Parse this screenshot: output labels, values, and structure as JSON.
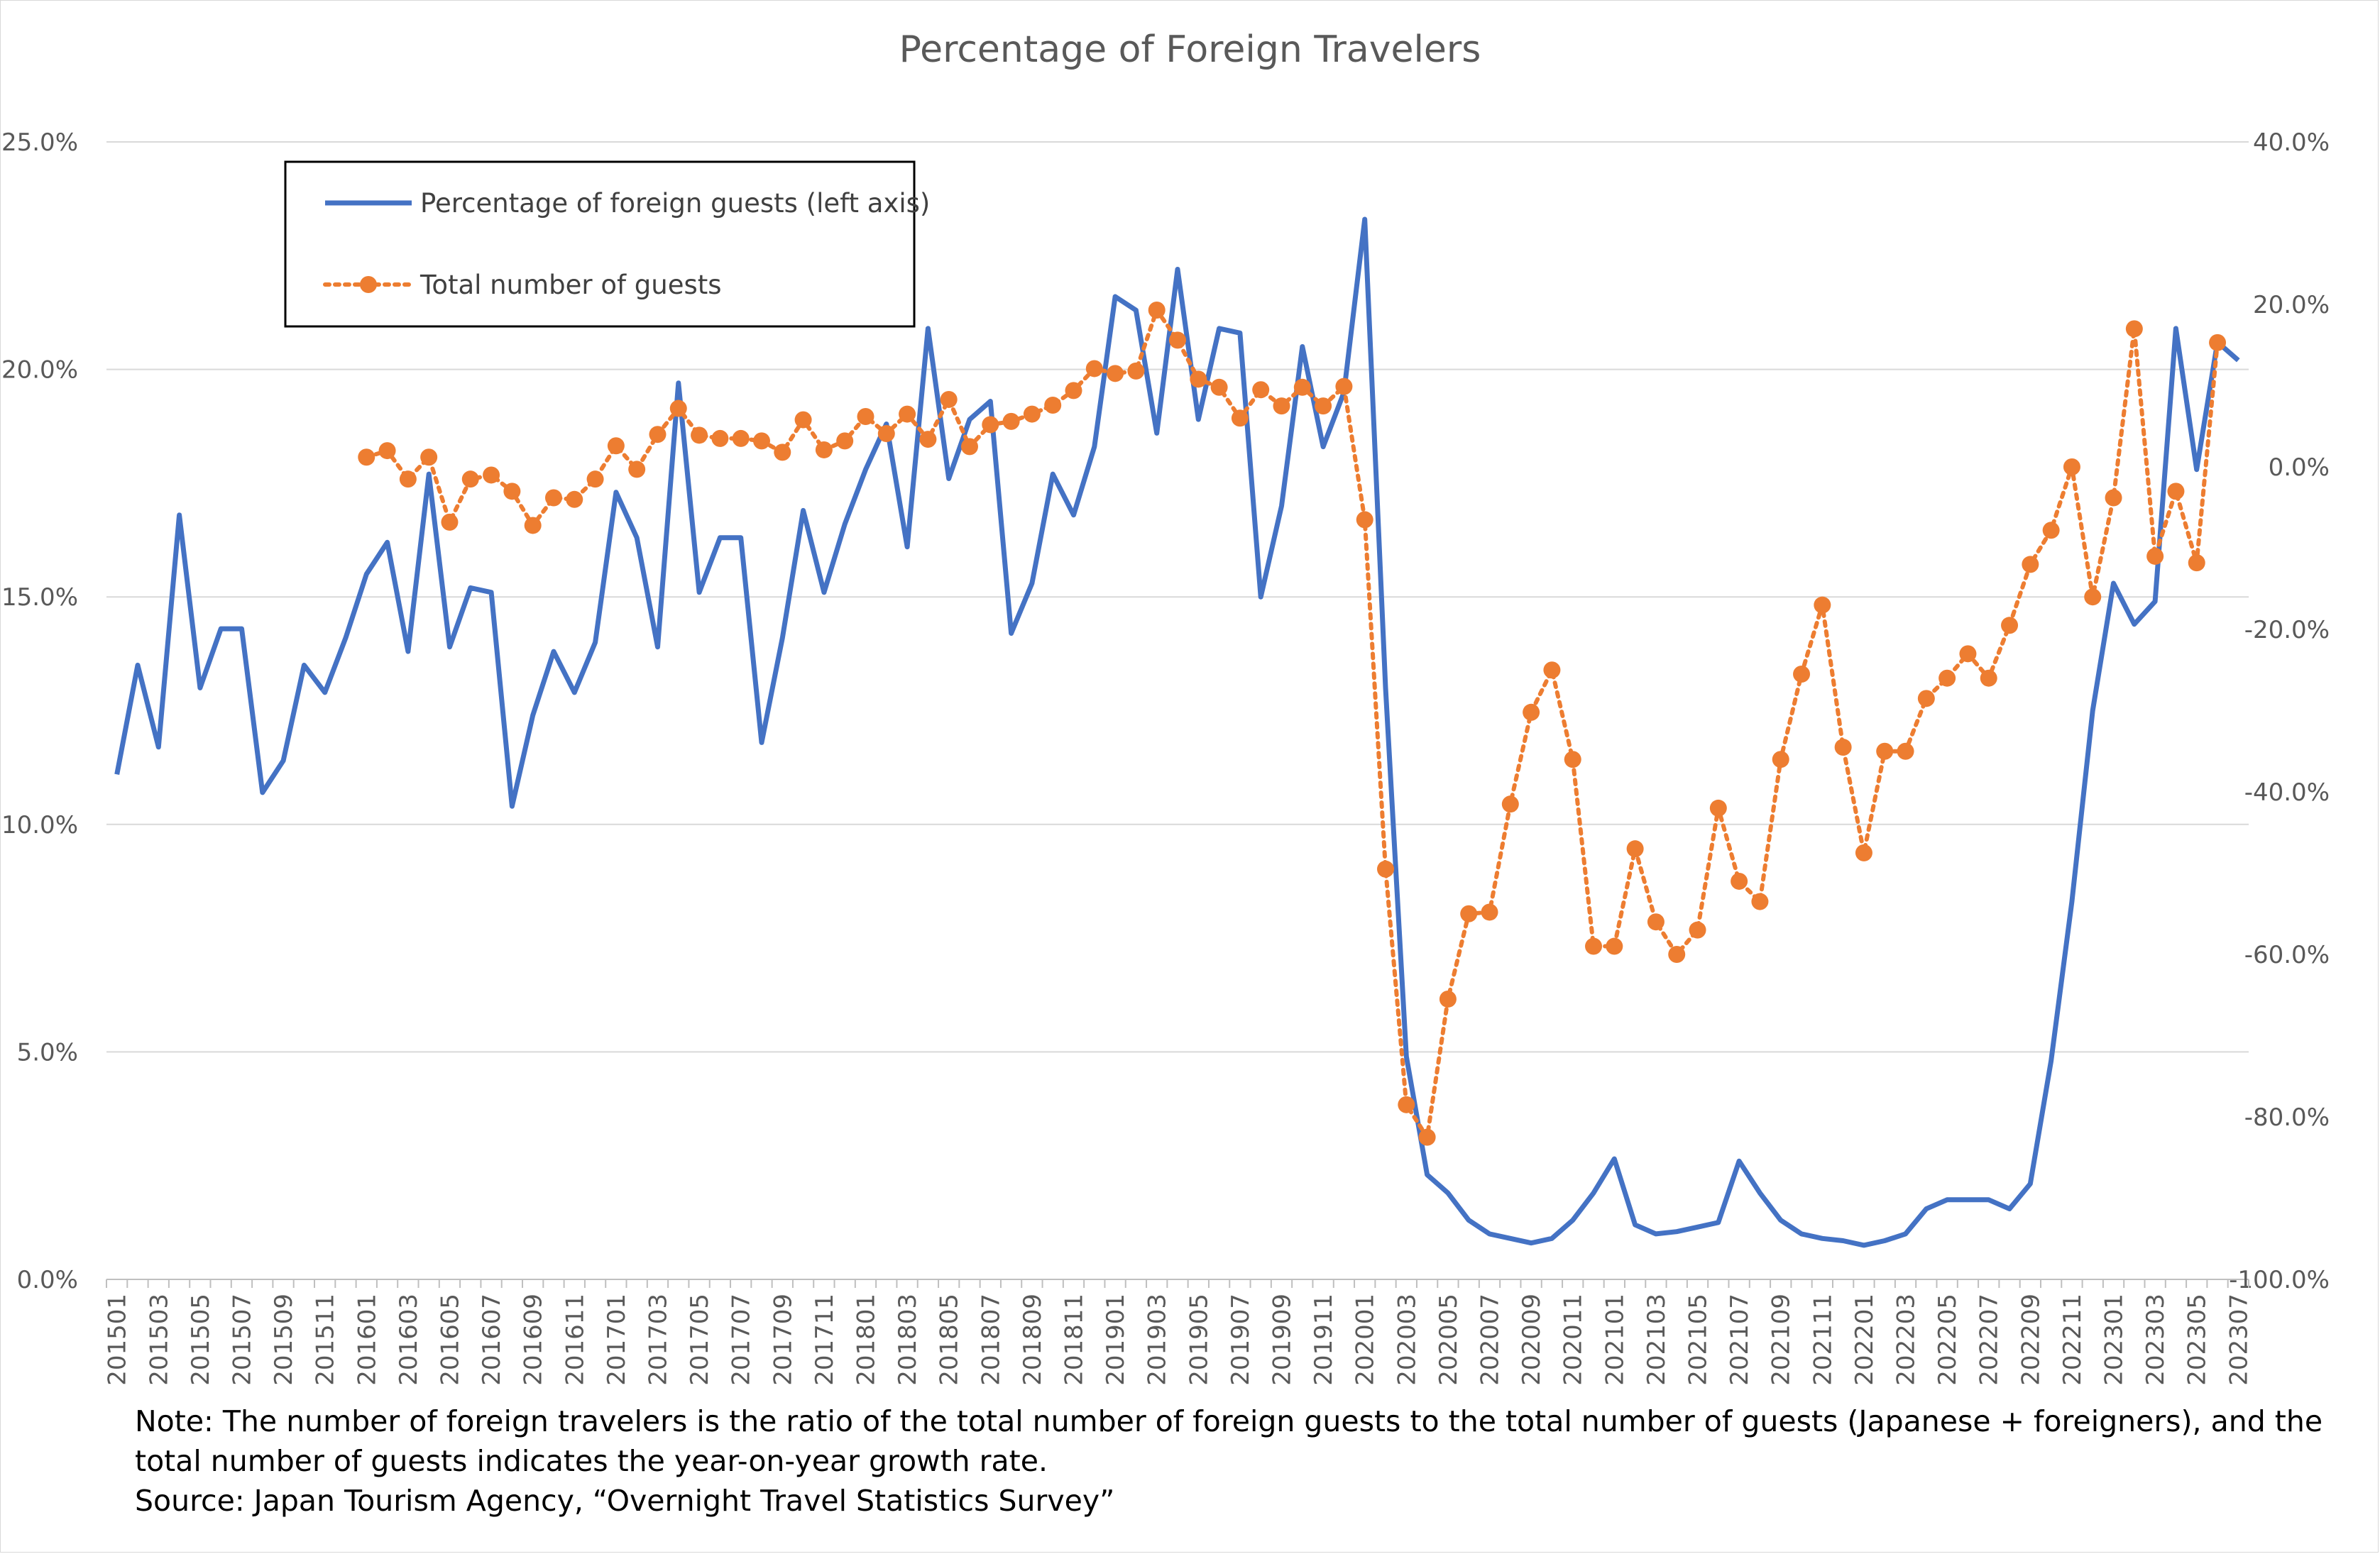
{
  "chart_data": {
    "type": "line",
    "title": "Percentage of Foreign Travelers",
    "y_left": {
      "ticks": [
        "0.0%",
        "5.0%",
        "10.0%",
        "15.0%",
        "20.0%",
        "25.0%"
      ],
      "range": [
        0,
        25
      ]
    },
    "y_right": {
      "ticks": [
        "-100.0%",
        "-80.0%",
        "-60.0%",
        "-40.0%",
        "-20.0%",
        "0.0%",
        "20.0%",
        "40.0%"
      ],
      "range": [
        -100,
        40
      ]
    },
    "x_tick_labels": [
      "201501",
      "201503",
      "201505",
      "201507",
      "201509",
      "201511",
      "201601",
      "201603",
      "201605",
      "201607",
      "201609",
      "201611",
      "201701",
      "201703",
      "201705",
      "201707",
      "201709",
      "201711",
      "201801",
      "201803",
      "201805",
      "201807",
      "201809",
      "201811",
      "201901",
      "201903",
      "201905",
      "201907",
      "201909",
      "201911",
      "202001",
      "202003",
      "202005",
      "202007",
      "202009",
      "202011",
      "202101",
      "202103",
      "202105",
      "202107",
      "202109",
      "202111",
      "202201",
      "202203",
      "202205",
      "202207",
      "202209",
      "202211",
      "202301",
      "202303",
      "202305",
      "202307"
    ],
    "legend": [
      {
        "name": "Percentage of foreign guests (left axis)",
        "color": "#4472c4",
        "style": "solid"
      },
      {
        "name": "Total number of guests",
        "color": "#ed7d31",
        "style": "dotted-markers"
      }
    ],
    "series": [
      {
        "name": "Percentage of foreign guests (left axis)",
        "axis": "left",
        "start": "201501",
        "values": [
          11.1,
          13.5,
          11.7,
          16.8,
          13.0,
          14.3,
          14.3,
          10.7,
          11.4,
          13.5,
          12.9,
          14.1,
          15.5,
          16.2,
          13.8,
          17.7,
          13.9,
          15.2,
          15.1,
          10.4,
          12.4,
          13.8,
          12.9,
          14.0,
          17.3,
          16.3,
          13.9,
          19.7,
          15.1,
          16.3,
          16.3,
          11.8,
          14.1,
          16.9,
          15.1,
          16.6,
          17.8,
          18.8,
          16.1,
          20.9,
          17.6,
          18.9,
          19.3,
          14.2,
          15.3,
          17.7,
          16.8,
          18.3,
          21.6,
          21.3,
          18.6,
          22.2,
          18.9,
          20.9,
          20.8,
          15.0,
          17.0,
          20.5,
          18.3,
          19.5,
          23.3,
          13.0,
          4.9,
          2.3,
          1.9,
          1.3,
          1.0,
          0.9,
          0.8,
          0.9,
          1.3,
          1.9,
          2.65,
          1.2,
          1.0,
          1.05,
          1.15,
          1.25,
          2.6,
          1.9,
          1.3,
          1.0,
          0.9,
          0.85,
          0.75,
          0.85,
          1.0,
          1.55,
          1.75,
          1.75,
          1.75,
          1.55,
          2.1,
          4.8,
          8.3,
          12.5,
          15.3,
          14.4,
          14.9,
          20.9,
          17.8,
          20.6,
          20.2
        ]
      },
      {
        "name": "Total number of guests",
        "axis": "right",
        "start": "201601",
        "values": [
          1.2,
          2.0,
          -1.5,
          1.2,
          -6.8,
          -1.5,
          -1.0,
          -3.0,
          -7.2,
          -3.8,
          -4.0,
          -1.5,
          2.6,
          -0.3,
          4.0,
          7.2,
          3.9,
          3.5,
          3.5,
          3.2,
          1.8,
          5.8,
          2.1,
          3.2,
          6.2,
          4.1,
          6.5,
          3.4,
          8.3,
          2.5,
          5.2,
          5.6,
          6.5,
          7.6,
          9.4,
          12.1,
          11.5,
          11.8,
          19.3,
          15.6,
          10.8,
          9.8,
          6.0,
          9.5,
          7.5,
          9.8,
          7.5,
          9.9,
          -6.5,
          -49.5,
          -78.5,
          -82.5,
          -65.5,
          -55.0,
          -54.8,
          -41.5,
          -30.2,
          -25.0,
          -36.0,
          -59.0,
          -59.0,
          -47.0,
          -56.0,
          -60.0,
          -57.0,
          -42.0,
          -51.0,
          -53.5,
          -36.0,
          -25.5,
          -17.0,
          -34.5,
          -47.5,
          -35.0,
          -35.0,
          -28.5,
          -26.0,
          -23.0,
          -26.0,
          -19.5,
          -12.0,
          -7.8,
          0.0,
          -16.0,
          -3.8,
          17.0,
          -11.0,
          -3.0,
          -11.8,
          15.3
        ]
      }
    ]
  },
  "note": {
    "line1": "Note: The number of foreign travelers is the ratio of the total number of foreign guests to the total number of guests (Japanese + foreigners), and the",
    "line2": "total number of guests indicates the year-on-year growth rate.",
    "line3": "Source: Japan Tourism Agency, “Overnight Travel Statistics Survey”"
  }
}
